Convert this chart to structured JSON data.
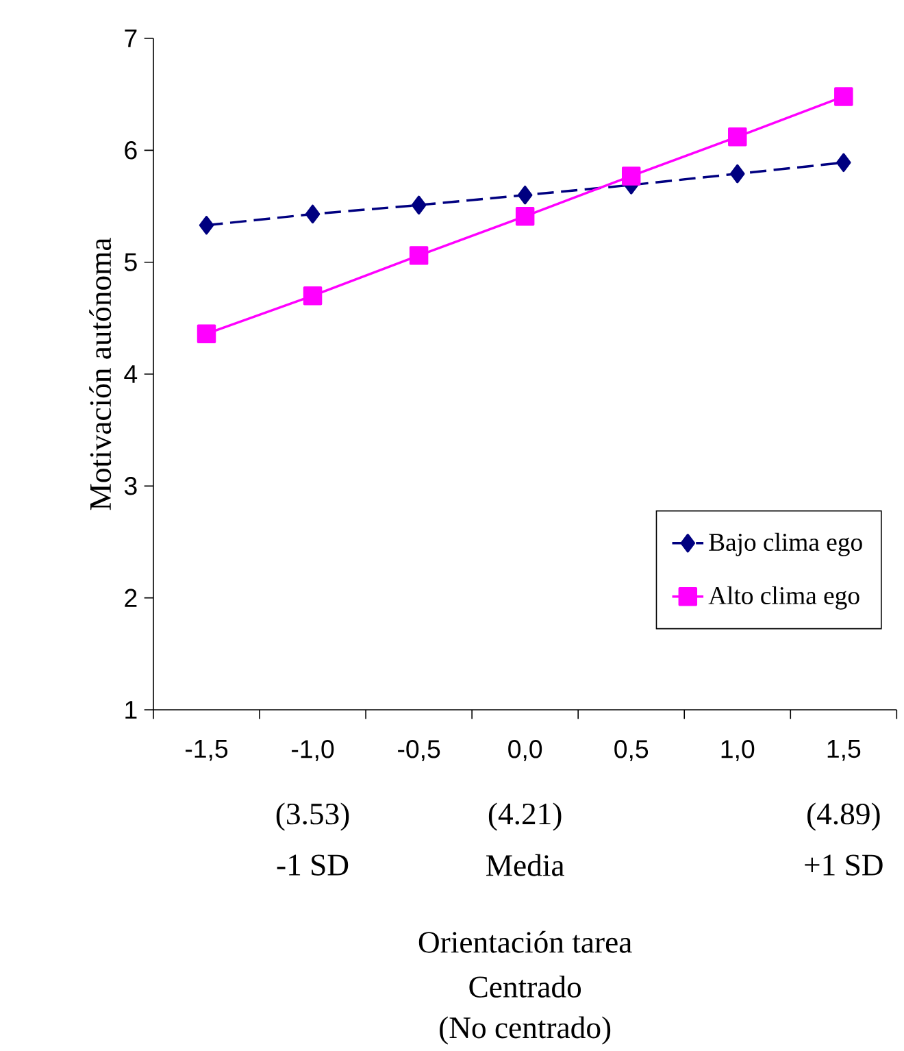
{
  "chart_data": {
    "type": "line",
    "ylabel": "Motivación autónoma",
    "categories": [
      "-1,5",
      "-1,0",
      "-0,5",
      "0,0",
      "0,5",
      "1,0",
      "1,5"
    ],
    "ylim": [
      1,
      7
    ],
    "yticks": [
      1,
      2,
      3,
      4,
      5,
      6,
      7
    ],
    "series": [
      {
        "name": "Bajo clima ego",
        "color": "#000080",
        "marker": "diamond",
        "line_style": "dashed",
        "values": [
          5.33,
          5.43,
          5.51,
          5.6,
          5.69,
          5.79,
          5.89
        ]
      },
      {
        "name": "Alto clima ego",
        "color": "#ff00ff",
        "marker": "square",
        "line_style": "solid",
        "values": [
          4.36,
          4.7,
          5.06,
          5.41,
          5.77,
          6.12,
          6.48
        ]
      }
    ],
    "legend": "bottom right",
    "grid": false,
    "annotations": [
      "(3.53)",
      "-1 SD",
      "(4.21)",
      "Media",
      "(4.89)",
      "+1 SD",
      "Orientación tarea",
      "Centrado",
      "(No centrado)"
    ]
  }
}
